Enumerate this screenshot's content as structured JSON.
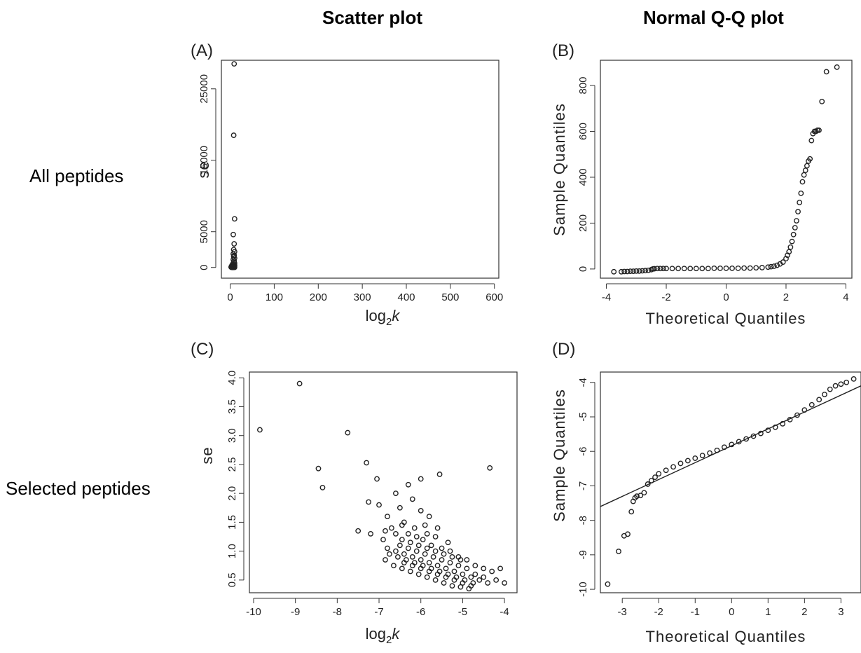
{
  "column_titles": [
    "Scatter plot",
    "Normal Q-Q plot"
  ],
  "row_labels": [
    "All peptides",
    "Selected peptides"
  ],
  "chart_data": [
    {
      "panel": "(A)",
      "type": "scatter",
      "xlabel": "log2k",
      "ylabel": "se",
      "xlim": [
        -20,
        610
      ],
      "ylim": [
        -1500,
        29000
      ],
      "xticks": [
        0,
        100,
        200,
        300,
        400,
        500,
        600
      ],
      "yticks": [
        0,
        5000,
        15000,
        25000
      ],
      "points": [
        [
          9,
          28500
        ],
        [
          8,
          18500
        ],
        [
          10,
          6800
        ],
        [
          7,
          4600
        ],
        [
          9,
          3300
        ],
        [
          8,
          2500
        ],
        [
          10,
          2200
        ],
        [
          7,
          1900
        ],
        [
          9,
          1700
        ],
        [
          8,
          1500
        ],
        [
          10,
          1300
        ],
        [
          7,
          1100
        ],
        [
          9,
          900
        ],
        [
          8,
          750
        ],
        [
          10,
          600
        ],
        [
          6,
          500
        ],
        [
          8,
          400
        ],
        [
          10,
          350
        ],
        [
          4,
          300
        ],
        [
          6,
          250
        ],
        [
          8,
          200
        ],
        [
          10,
          180
        ],
        [
          3,
          150
        ],
        [
          5,
          120
        ],
        [
          7,
          100
        ],
        [
          9,
          80
        ],
        [
          2,
          60
        ],
        [
          4,
          40
        ],
        [
          6,
          30
        ],
        [
          8,
          20
        ],
        [
          10,
          10
        ],
        [
          3,
          5
        ],
        [
          5,
          0
        ],
        [
          7,
          0
        ]
      ]
    },
    {
      "panel": "(B)",
      "type": "scatter",
      "xlabel": "Theoretical Quantiles",
      "ylabel": "Sample Quantiles",
      "xlim": [
        -4.2,
        4.2
      ],
      "ylim": [
        -40,
        910
      ],
      "xticks": [
        -4,
        -2,
        0,
        2,
        4
      ],
      "yticks": [
        0,
        200,
        400,
        600,
        800
      ],
      "points": [
        [
          -3.75,
          -12
        ],
        [
          -3.5,
          -12
        ],
        [
          -3.4,
          -11
        ],
        [
          -3.3,
          -11
        ],
        [
          -3.2,
          -10
        ],
        [
          -3.1,
          -10
        ],
        [
          -3.0,
          -9
        ],
        [
          -2.9,
          -9
        ],
        [
          -2.8,
          -8
        ],
        [
          -2.7,
          -7
        ],
        [
          -2.6,
          -6
        ],
        [
          -2.5,
          -3
        ],
        [
          -2.45,
          0
        ],
        [
          -2.4,
          1
        ],
        [
          -2.3,
          2
        ],
        [
          -2.2,
          2
        ],
        [
          -2.1,
          2
        ],
        [
          -2.0,
          2
        ],
        [
          -1.8,
          2
        ],
        [
          -1.6,
          2
        ],
        [
          -1.4,
          2
        ],
        [
          -1.2,
          2
        ],
        [
          -1.0,
          2
        ],
        [
          -0.8,
          2
        ],
        [
          -0.6,
          2
        ],
        [
          -0.4,
          3
        ],
        [
          -0.2,
          3
        ],
        [
          0.0,
          3
        ],
        [
          0.2,
          3
        ],
        [
          0.4,
          3
        ],
        [
          0.6,
          4
        ],
        [
          0.8,
          4
        ],
        [
          1.0,
          5
        ],
        [
          1.2,
          6
        ],
        [
          1.4,
          8
        ],
        [
          1.5,
          10
        ],
        [
          1.6,
          12
        ],
        [
          1.7,
          16
        ],
        [
          1.8,
          22
        ],
        [
          1.9,
          30
        ],
        [
          2.0,
          45
        ],
        [
          2.05,
          60
        ],
        [
          2.1,
          75
        ],
        [
          2.15,
          95
        ],
        [
          2.2,
          120
        ],
        [
          2.25,
          150
        ],
        [
          2.3,
          180
        ],
        [
          2.35,
          210
        ],
        [
          2.4,
          250
        ],
        [
          2.45,
          290
        ],
        [
          2.5,
          330
        ],
        [
          2.55,
          380
        ],
        [
          2.6,
          410
        ],
        [
          2.65,
          430
        ],
        [
          2.7,
          450
        ],
        [
          2.75,
          470
        ],
        [
          2.8,
          480
        ],
        [
          2.85,
          560
        ],
        [
          2.9,
          590
        ],
        [
          2.95,
          600
        ],
        [
          3.0,
          600
        ],
        [
          3.05,
          605
        ],
        [
          3.1,
          605
        ],
        [
          3.2,
          730
        ],
        [
          3.35,
          860
        ],
        [
          3.7,
          880
        ]
      ]
    },
    {
      "panel": "(C)",
      "type": "scatter",
      "xlabel": "log2k",
      "ylabel": "se",
      "xlim": [
        -10.1,
        -3.7
      ],
      "ylim": [
        0.28,
        4.1
      ],
      "xticks": [
        -10,
        -9,
        -8,
        -7,
        -6,
        -5,
        -4
      ],
      "yticks": [
        0.5,
        1.0,
        1.5,
        2.0,
        2.5,
        3.0,
        3.5,
        4.0
      ],
      "points": [
        [
          -9.85,
          3.1
        ],
        [
          -8.9,
          3.9
        ],
        [
          -7.75,
          3.05
        ],
        [
          -8.45,
          2.43
        ],
        [
          -8.35,
          2.1
        ],
        [
          -7.3,
          2.53
        ],
        [
          -6.0,
          2.25
        ],
        [
          -5.55,
          2.33
        ],
        [
          -4.35,
          2.44
        ],
        [
          -6.6,
          2.0
        ],
        [
          -7.05,
          2.25
        ],
        [
          -6.3,
          2.15
        ],
        [
          -7.25,
          1.85
        ],
        [
          -7.0,
          1.8
        ],
        [
          -7.5,
          1.35
        ],
        [
          -7.2,
          1.3
        ],
        [
          -6.8,
          1.6
        ],
        [
          -6.5,
          1.75
        ],
        [
          -6.2,
          1.9
        ],
        [
          -6.0,
          1.7
        ],
        [
          -5.8,
          1.6
        ],
        [
          -5.6,
          1.4
        ],
        [
          -5.9,
          1.45
        ],
        [
          -6.4,
          1.5
        ],
        [
          -6.7,
          1.4
        ],
        [
          -6.9,
          1.2
        ],
        [
          -6.6,
          1.3
        ],
        [
          -6.3,
          1.3
        ],
        [
          -6.1,
          1.25
        ],
        [
          -5.95,
          1.2
        ],
        [
          -5.75,
          1.1
        ],
        [
          -5.5,
          1.05
        ],
        [
          -5.3,
          1.0
        ],
        [
          -5.1,
          0.9
        ],
        [
          -4.9,
          0.85
        ],
        [
          -4.7,
          0.75
        ],
        [
          -4.5,
          0.7
        ],
        [
          -4.3,
          0.65
        ],
        [
          -4.1,
          0.7
        ],
        [
          -4.0,
          0.45
        ],
        [
          -4.2,
          0.5
        ],
        [
          -4.4,
          0.45
        ],
        [
          -4.6,
          0.5
        ],
        [
          -4.8,
          0.55
        ],
        [
          -5.0,
          0.6
        ],
        [
          -5.2,
          0.65
        ],
        [
          -5.4,
          0.7
        ],
        [
          -5.6,
          0.75
        ],
        [
          -5.8,
          0.8
        ],
        [
          -6.0,
          0.85
        ],
        [
          -6.2,
          0.9
        ],
        [
          -6.4,
          0.95
        ],
        [
          -6.6,
          1.0
        ],
        [
          -6.8,
          1.05
        ],
        [
          -6.5,
          1.1
        ],
        [
          -6.3,
          1.05
        ],
        [
          -6.1,
          1.0
        ],
        [
          -5.9,
          0.95
        ],
        [
          -5.7,
          0.9
        ],
        [
          -5.5,
          0.85
        ],
        [
          -5.3,
          0.8
        ],
        [
          -5.1,
          0.75
        ],
        [
          -4.9,
          0.7
        ],
        [
          -4.7,
          0.6
        ],
        [
          -4.5,
          0.55
        ],
        [
          -6.4,
          0.8
        ],
        [
          -6.2,
          0.75
        ],
        [
          -6.0,
          0.7
        ],
        [
          -5.8,
          0.65
        ],
        [
          -5.6,
          0.6
        ],
        [
          -5.4,
          0.55
        ],
        [
          -5.2,
          0.5
        ],
        [
          -5.0,
          0.45
        ],
        [
          -4.8,
          0.4
        ],
        [
          -6.55,
          0.9
        ],
        [
          -6.35,
          0.85
        ],
        [
          -6.15,
          0.8
        ],
        [
          -5.95,
          0.75
        ],
        [
          -5.75,
          0.7
        ],
        [
          -5.55,
          0.65
        ],
        [
          -5.35,
          0.6
        ],
        [
          -5.15,
          0.55
        ],
        [
          -4.95,
          0.5
        ],
        [
          -4.75,
          0.45
        ],
        [
          -6.45,
          1.2
        ],
        [
          -6.25,
          1.15
        ],
        [
          -6.05,
          1.1
        ],
        [
          -5.85,
          1.05
        ],
        [
          -5.65,
          1.0
        ],
        [
          -5.45,
          0.95
        ],
        [
          -5.25,
          0.9
        ],
        [
          -5.05,
          0.85
        ],
        [
          -6.75,
          0.95
        ],
        [
          -6.85,
          0.85
        ],
        [
          -6.65,
          0.75
        ],
        [
          -6.45,
          0.7
        ],
        [
          -6.25,
          0.65
        ],
        [
          -6.05,
          0.6
        ],
        [
          -5.85,
          0.55
        ],
        [
          -5.65,
          0.5
        ],
        [
          -5.45,
          0.45
        ],
        [
          -5.25,
          0.4
        ],
        [
          -4.85,
          0.35
        ],
        [
          -5.05,
          0.38
        ],
        [
          -6.15,
          1.4
        ],
        [
          -5.85,
          1.3
        ],
        [
          -5.65,
          1.25
        ],
        [
          -5.35,
          1.15
        ],
        [
          -6.45,
          1.45
        ],
        [
          -6.85,
          1.35
        ]
      ]
    },
    {
      "panel": "(D)",
      "type": "scatter",
      "xlabel": "Theoretical Quantiles",
      "ylabel": "Sample Quantiles",
      "xlim": [
        -3.6,
        3.55
      ],
      "ylim": [
        -10.1,
        -3.7
      ],
      "xticks": [
        -3,
        -2,
        -1,
        0,
        1,
        2,
        3
      ],
      "yticks": [
        -10,
        -9,
        -8,
        -7,
        -6,
        -5,
        -4
      ],
      "reference_line": [
        [
          -3.6,
          -7.6
        ],
        [
          3.55,
          -4.1
        ]
      ],
      "points": [
        [
          -3.4,
          -9.85
        ],
        [
          -3.1,
          -8.9
        ],
        [
          -2.95,
          -8.45
        ],
        [
          -2.85,
          -8.4
        ],
        [
          -2.75,
          -7.75
        ],
        [
          -2.7,
          -7.45
        ],
        [
          -2.65,
          -7.35
        ],
        [
          -2.6,
          -7.3
        ],
        [
          -2.5,
          -7.28
        ],
        [
          -2.4,
          -7.2
        ],
        [
          -2.3,
          -6.95
        ],
        [
          -2.2,
          -6.85
        ],
        [
          -2.1,
          -6.75
        ],
        [
          -2.0,
          -6.65
        ],
        [
          -1.8,
          -6.55
        ],
        [
          -1.6,
          -6.45
        ],
        [
          -1.4,
          -6.35
        ],
        [
          -1.2,
          -6.27
        ],
        [
          -1.0,
          -6.2
        ],
        [
          -0.8,
          -6.12
        ],
        [
          -0.6,
          -6.05
        ],
        [
          -0.4,
          -5.97
        ],
        [
          -0.2,
          -5.88
        ],
        [
          0.0,
          -5.8
        ],
        [
          0.2,
          -5.72
        ],
        [
          0.4,
          -5.64
        ],
        [
          0.6,
          -5.56
        ],
        [
          0.8,
          -5.48
        ],
        [
          1.0,
          -5.39
        ],
        [
          1.2,
          -5.3
        ],
        [
          1.4,
          -5.2
        ],
        [
          1.6,
          -5.08
        ],
        [
          1.8,
          -4.95
        ],
        [
          2.0,
          -4.8
        ],
        [
          2.2,
          -4.65
        ],
        [
          2.4,
          -4.5
        ],
        [
          2.55,
          -4.35
        ],
        [
          2.7,
          -4.2
        ],
        [
          2.85,
          -4.1
        ],
        [
          3.0,
          -4.05
        ],
        [
          3.15,
          -4.0
        ],
        [
          3.35,
          -3.9
        ]
      ]
    }
  ]
}
